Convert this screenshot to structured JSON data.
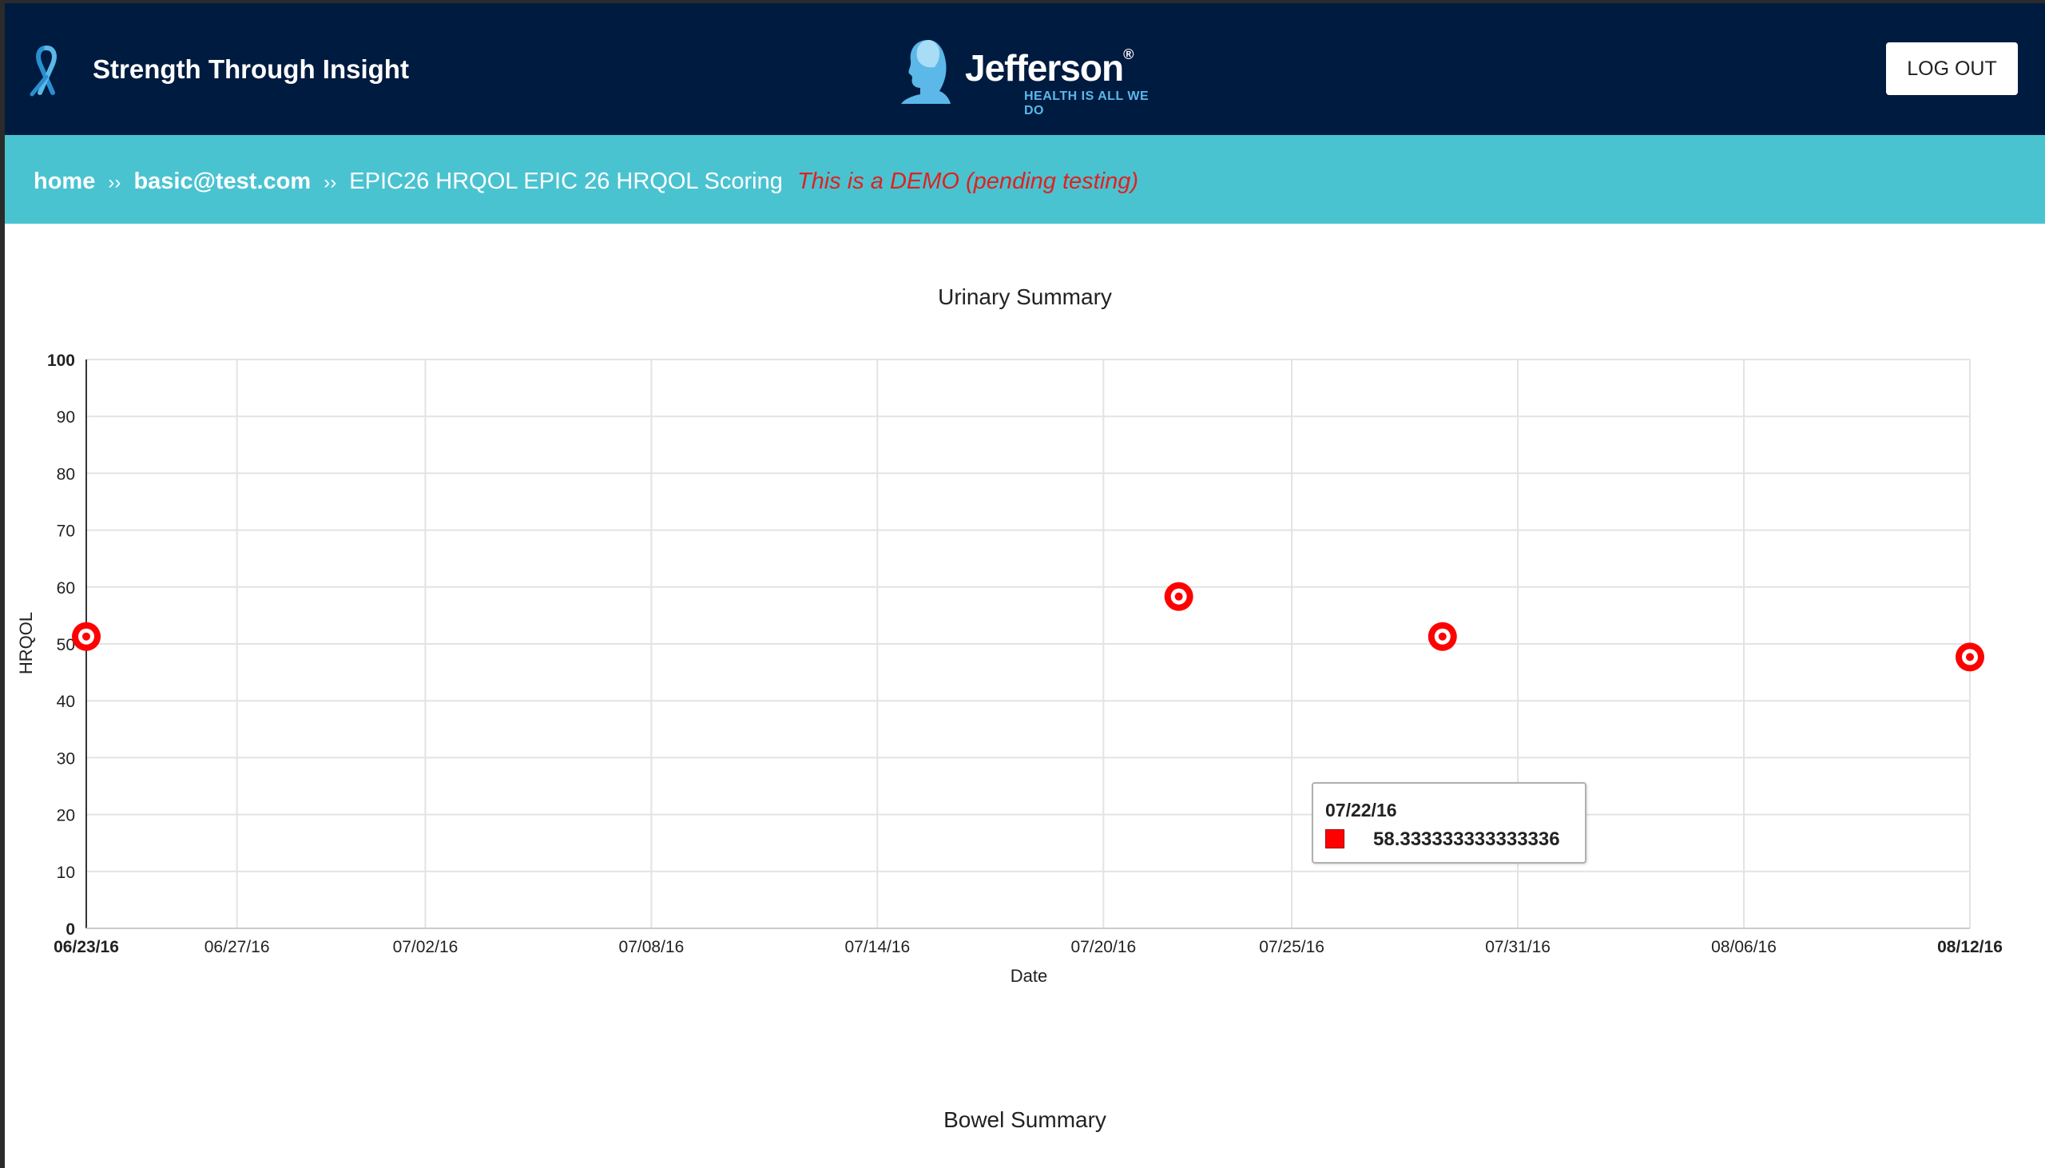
{
  "header": {
    "site_title": "Strength Through Insight",
    "logo_text": "Jefferson",
    "logo_registered": "®",
    "logo_tagline": "HEALTH IS ALL WE DO",
    "logout_label": "LOG OUT"
  },
  "breadcrumb": {
    "home": "home",
    "sep1": "››",
    "user": "basic@test.com",
    "sep2": "››",
    "page": "EPIC26 HRQOL EPIC 26 HRQOL Scoring",
    "demo_notice": "This is a DEMO (pending testing)"
  },
  "colors": {
    "header_bg": "#001b40",
    "crumb_bg": "#4ac3d1",
    "demo_text": "#e0211f",
    "series": "#ff0000"
  },
  "tooltip": {
    "date": "07/22/16",
    "value": "58.333333333333336"
  },
  "chart_data": [
    {
      "type": "scatter",
      "title": "Urinary Summary",
      "xlabel": "Date",
      "ylabel": "HRQOL",
      "ylim": [
        0,
        100
      ],
      "yticks": [
        "0",
        "10",
        "20",
        "30",
        "40",
        "50",
        "60",
        "70",
        "80",
        "90",
        "100"
      ],
      "xlim": [
        "2016-06-23",
        "2016-08-12"
      ],
      "xticks": [
        {
          "date": "2016-06-23",
          "label": "06/23/16",
          "bold": true
        },
        {
          "date": "2016-06-27",
          "label": "06/27/16",
          "bold": false
        },
        {
          "date": "2016-07-02",
          "label": "07/02/16",
          "bold": false
        },
        {
          "date": "2016-07-08",
          "label": "07/08/16",
          "bold": false
        },
        {
          "date": "2016-07-14",
          "label": "07/14/16",
          "bold": false
        },
        {
          "date": "2016-07-20",
          "label": "07/20/16",
          "bold": false
        },
        {
          "date": "2016-07-25",
          "label": "07/25/16",
          "bold": false
        },
        {
          "date": "2016-07-31",
          "label": "07/31/16",
          "bold": false
        },
        {
          "date": "2016-08-06",
          "label": "08/06/16",
          "bold": false
        },
        {
          "date": "2016-08-12",
          "label": "08/12/16",
          "bold": true
        }
      ],
      "grid": true,
      "series": [
        {
          "color": "#ff0000",
          "points": [
            {
              "x": "2016-06-23",
              "y": 51.3
            },
            {
              "x": "2016-07-22",
              "y": 58.333333333333336
            },
            {
              "x": "2016-07-29",
              "y": 51.3
            },
            {
              "x": "2016-08-12",
              "y": 47.7
            }
          ]
        }
      ]
    }
  ],
  "next_chart": {
    "title": "Bowel Summary"
  }
}
